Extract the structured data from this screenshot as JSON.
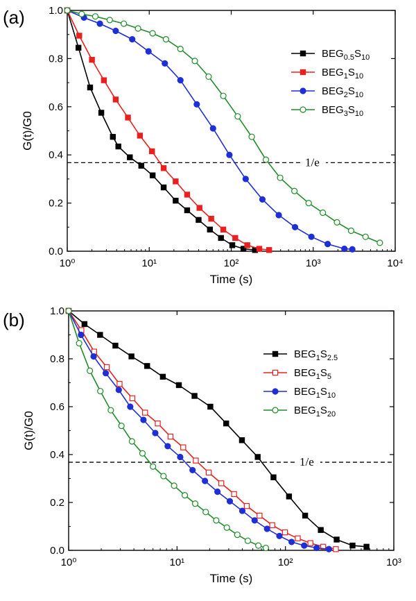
{
  "chart_data": [
    {
      "type": "line",
      "panel_label": "(a)",
      "xlabel": "Time (s)",
      "ylabel": "G(t)/G0",
      "x_scale": "log",
      "xlim": [
        1,
        10000
      ],
      "ylim": [
        0,
        1.0
      ],
      "x_ticks": [
        1,
        10,
        100,
        1000,
        10000
      ],
      "y_ticks": [
        0.0,
        0.2,
        0.4,
        0.6,
        0.8,
        1.0
      ],
      "reference_line": {
        "y": 0.3679,
        "label": "1/e",
        "style": "dashed"
      },
      "legend_position": "top-right",
      "series": [
        {
          "name": "BEG0.5S10",
          "base": "BEG",
          "sub1": "0.5",
          "mid": "S",
          "sub2": "10",
          "color": "#000000",
          "marker": "square",
          "filled": true,
          "x": [
            1.0,
            1.37,
            1.9,
            2.6,
            3.6,
            4.2,
            5.8,
            8.0,
            11.0,
            15.0,
            21.0,
            29.0,
            40.0,
            55.0,
            75.0,
            103.0,
            141.0,
            195.0
          ],
          "y": [
            1.0,
            0.845,
            0.68,
            0.575,
            0.475,
            0.435,
            0.39,
            0.355,
            0.315,
            0.265,
            0.21,
            0.17,
            0.13,
            0.09,
            0.055,
            0.025,
            0.01,
            0.005
          ]
        },
        {
          "name": "BEG1S10",
          "base": "BEG",
          "sub1": "1",
          "mid": "S",
          "sub2": "10",
          "color": "#e8211f",
          "marker": "square",
          "filled": true,
          "x": [
            1.0,
            1.4,
            2.0,
            2.8,
            3.9,
            5.5,
            7.7,
            10.8,
            15.0,
            21.0,
            29.0,
            41.0,
            57.0,
            80.0,
            112.0,
            157.0,
            220.0,
            290.0
          ],
          "y": [
            1.0,
            0.895,
            0.795,
            0.71,
            0.63,
            0.555,
            0.48,
            0.415,
            0.345,
            0.29,
            0.235,
            0.18,
            0.135,
            0.09,
            0.055,
            0.025,
            0.01,
            0.005
          ]
        },
        {
          "name": "BEG2S10",
          "base": "BEG",
          "sub1": "2",
          "mid": "S",
          "sub2": "10",
          "color": "#1f2fd6",
          "marker": "circle",
          "filled": true,
          "x": [
            1.0,
            1.6,
            2.5,
            3.9,
            6.2,
            9.8,
            15.5,
            24.0,
            38.0,
            60.0,
            95.0,
            150.0,
            240.0,
            380.0,
            600.0,
            950.0,
            1500.0,
            2400.0,
            3000.0
          ],
          "y": [
            1.0,
            0.97,
            0.945,
            0.915,
            0.88,
            0.83,
            0.78,
            0.71,
            0.61,
            0.51,
            0.4,
            0.3,
            0.215,
            0.15,
            0.1,
            0.06,
            0.03,
            0.01,
            0.008
          ]
        },
        {
          "name": "BEG3S10",
          "base": "BEG",
          "sub1": "3",
          "mid": "S",
          "sub2": "10",
          "color": "#1f8c28",
          "marker": "circle",
          "filled": false,
          "x": [
            1.0,
            1.5,
            2.2,
            3.3,
            4.9,
            7.3,
            11.0,
            16.0,
            24.0,
            36.0,
            53.0,
            80.0,
            120.0,
            178.0,
            265.0,
            395.0,
            590.0,
            880.0,
            1310.0,
            1950.0,
            2900.0,
            4350.0,
            6500.0
          ],
          "y": [
            1.0,
            0.985,
            0.975,
            0.96,
            0.945,
            0.925,
            0.905,
            0.88,
            0.84,
            0.79,
            0.725,
            0.645,
            0.56,
            0.475,
            0.38,
            0.305,
            0.25,
            0.2,
            0.16,
            0.12,
            0.085,
            0.06,
            0.035
          ]
        }
      ]
    },
    {
      "type": "line",
      "panel_label": "(b)",
      "xlabel": "Time (s)",
      "ylabel": "G(t)/G0",
      "x_scale": "log",
      "xlim": [
        1,
        1000
      ],
      "ylim": [
        0,
        1.0
      ],
      "x_ticks": [
        1,
        10,
        100,
        1000
      ],
      "y_ticks": [
        0.0,
        0.2,
        0.4,
        0.6,
        0.8,
        1.0
      ],
      "reference_line": {
        "y": 0.3679,
        "label": "1/e",
        "style": "dashed"
      },
      "legend_position": "top-right",
      "series": [
        {
          "name": "BEG1S2.5",
          "base": "BEG",
          "sub1": "1",
          "mid": "S",
          "sub2": "2.5",
          "color": "#000000",
          "marker": "square",
          "filled": true,
          "x": [
            1.0,
            1.4,
            1.95,
            2.7,
            3.8,
            5.3,
            7.4,
            10.4,
            14.5,
            20.3,
            28.4,
            39.7,
            55.5,
            77.6,
            108.0,
            152.0,
            212.0,
            297.0,
            416.0,
            560.0
          ],
          "y": [
            1.0,
            0.945,
            0.9,
            0.855,
            0.81,
            0.77,
            0.725,
            0.69,
            0.645,
            0.6,
            0.53,
            0.46,
            0.39,
            0.305,
            0.225,
            0.145,
            0.085,
            0.045,
            0.02,
            0.015
          ]
        },
        {
          "name": "BEG1S5",
          "base": "BEG",
          "sub1": "1",
          "mid": "S",
          "sub2": "5",
          "color": "#e8211f",
          "marker": "square",
          "filled": false,
          "x": [
            1.0,
            1.31,
            1.72,
            2.25,
            2.95,
            3.87,
            5.07,
            6.64,
            8.7,
            11.4,
            14.9,
            19.6,
            25.6,
            33.6,
            44.0,
            57.7,
            75.6,
            99.0,
            130.0,
            170.0,
            223.0,
            292.0
          ],
          "y": [
            1.0,
            0.92,
            0.83,
            0.765,
            0.695,
            0.635,
            0.575,
            0.53,
            0.475,
            0.43,
            0.375,
            0.325,
            0.28,
            0.235,
            0.185,
            0.145,
            0.105,
            0.075,
            0.05,
            0.03,
            0.015,
            0.005
          ]
        },
        {
          "name": "BEG1S10",
          "base": "BEG",
          "sub1": "1",
          "mid": "S",
          "sub2": "10",
          "color": "#1f2fd6",
          "marker": "circle",
          "filled": true,
          "x": [
            1.0,
            1.3,
            1.7,
            2.2,
            2.9,
            3.7,
            4.9,
            6.3,
            8.2,
            10.7,
            13.9,
            18.1,
            23.6,
            30.7,
            40.0,
            52.0,
            67.7,
            88.0,
            114.0,
            149.0,
            194.0,
            252.0
          ],
          "y": [
            1.0,
            0.9,
            0.81,
            0.74,
            0.67,
            0.6,
            0.545,
            0.49,
            0.435,
            0.39,
            0.335,
            0.29,
            0.245,
            0.205,
            0.165,
            0.125,
            0.09,
            0.06,
            0.035,
            0.02,
            0.01,
            0.005
          ]
        },
        {
          "name": "BEG1S20",
          "base": "BEG",
          "sub1": "1",
          "mid": "S",
          "sub2": "20",
          "color": "#1f8c28",
          "marker": "circle",
          "filled": false,
          "x": [
            1.0,
            1.25,
            1.57,
            1.96,
            2.45,
            3.07,
            3.84,
            4.8,
            6.0,
            7.5,
            9.4,
            11.8,
            14.7,
            18.4,
            23.0,
            28.8,
            36.0,
            45.0,
            56.3,
            66.0
          ],
          "y": [
            1.0,
            0.865,
            0.75,
            0.665,
            0.585,
            0.52,
            0.455,
            0.405,
            0.35,
            0.31,
            0.27,
            0.23,
            0.195,
            0.16,
            0.125,
            0.095,
            0.065,
            0.04,
            0.02,
            0.01
          ]
        }
      ]
    }
  ]
}
